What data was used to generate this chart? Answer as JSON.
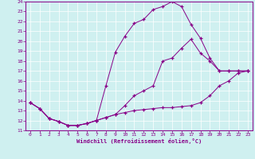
{
  "xlabel": "Windchill (Refroidissement éolien,°C)",
  "bg_color": "#cff0f0",
  "line_color": "#880088",
  "grid_color": "#ffffff",
  "xlim": [
    -0.5,
    23.5
  ],
  "ylim": [
    11,
    24
  ],
  "xticks": [
    0,
    1,
    2,
    3,
    4,
    5,
    6,
    7,
    8,
    9,
    10,
    11,
    12,
    13,
    14,
    15,
    16,
    17,
    18,
    19,
    20,
    21,
    22,
    23
  ],
  "yticks": [
    11,
    12,
    13,
    14,
    15,
    16,
    17,
    18,
    19,
    20,
    21,
    22,
    23,
    24
  ],
  "curve1_x": [
    0,
    1,
    2,
    3,
    4,
    5,
    6,
    7,
    8,
    9,
    10,
    11,
    12,
    13,
    14,
    15,
    16,
    17,
    18,
    19,
    20,
    21,
    22,
    23
  ],
  "curve1_y": [
    13.8,
    13.2,
    12.2,
    11.9,
    11.5,
    11.5,
    11.7,
    12.0,
    12.3,
    12.6,
    12.8,
    13.0,
    13.1,
    13.2,
    13.3,
    13.3,
    13.4,
    13.5,
    13.8,
    14.5,
    15.5,
    16.0,
    16.8,
    17.0
  ],
  "curve2_x": [
    0,
    1,
    2,
    3,
    4,
    5,
    6,
    7,
    8,
    9,
    10,
    11,
    12,
    13,
    14,
    15,
    16,
    17,
    18,
    19,
    20,
    21,
    22,
    23
  ],
  "curve2_y": [
    13.8,
    13.2,
    12.2,
    11.9,
    11.5,
    11.5,
    11.7,
    12.0,
    15.5,
    18.9,
    20.5,
    21.8,
    22.2,
    23.2,
    23.5,
    24.0,
    23.5,
    21.7,
    20.3,
    18.3,
    17.0,
    17.0,
    17.0,
    17.0
  ],
  "curve3_x": [
    0,
    1,
    2,
    3,
    4,
    5,
    6,
    7,
    8,
    9,
    10,
    11,
    12,
    13,
    14,
    15,
    16,
    17,
    18,
    19,
    20,
    21,
    22,
    23
  ],
  "curve3_y": [
    13.8,
    13.2,
    12.2,
    11.9,
    11.5,
    11.5,
    11.7,
    12.0,
    12.3,
    12.6,
    13.5,
    14.5,
    15.0,
    15.5,
    18.0,
    18.3,
    19.3,
    20.2,
    18.8,
    18.0,
    17.0,
    17.0,
    17.0,
    17.0
  ]
}
